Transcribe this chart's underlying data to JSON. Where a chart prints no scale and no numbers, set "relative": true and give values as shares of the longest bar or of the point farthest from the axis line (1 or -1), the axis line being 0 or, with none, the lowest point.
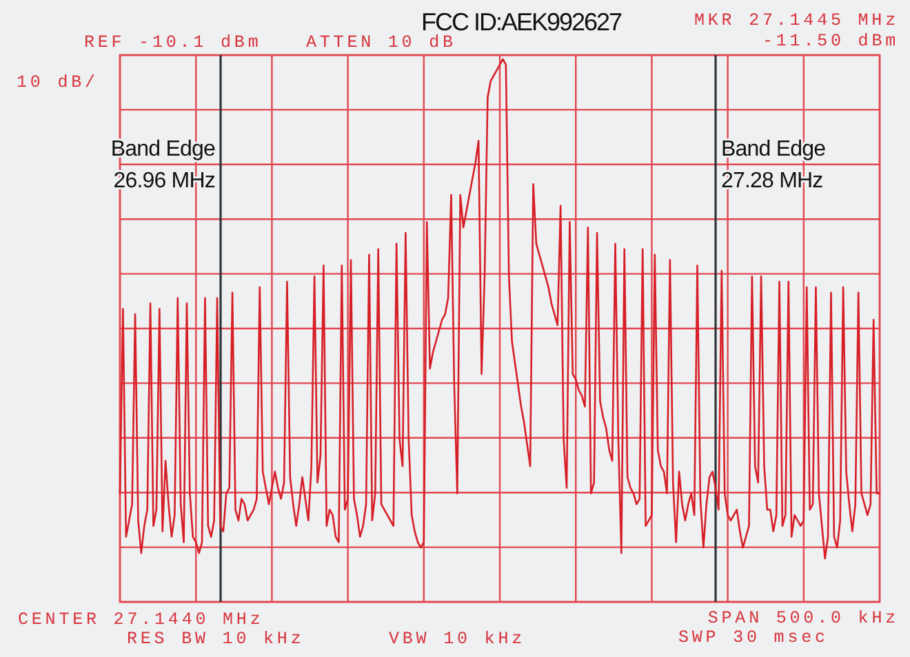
{
  "chart_data": {
    "type": "line",
    "title": "FCC ID:AEK992627",
    "annotations": [
      "REF -10.1 dBm",
      "10 dB/",
      "ATTEN 10 dB",
      "MKR 27.1445 MHz",
      "-11.50 dBm",
      "Band Edge\n26.96 MHz",
      "Band Edge\n27.28 MHz",
      "CENTER 27.1440 MHz",
      "RES BW 10 kHz",
      "VBW 10 kHz",
      "SPAN 500.0 kHz",
      "SWP 30 msec"
    ],
    "relative": true,
    "grid": true,
    "categories": [
      null,
      null,
      null,
      null,
      null,
      null,
      null,
      null,
      null,
      null,
      null,
      null,
      null,
      null,
      null,
      null,
      null,
      null,
      null,
      null,
      null,
      null,
      null,
      null,
      null,
      null,
      null,
      null,
      null,
      null,
      null,
      null,
      null,
      null,
      null,
      null,
      null,
      null,
      null,
      null,
      null,
      null,
      null,
      null,
      null,
      null,
      null,
      null,
      null,
      null,
      null,
      null,
      null,
      null,
      null,
      null,
      null,
      null,
      null,
      null,
      null,
      null,
      null,
      null,
      null,
      null,
      null,
      null,
      null,
      null,
      null,
      null,
      null,
      null,
      null,
      null,
      null,
      null,
      null,
      null,
      null,
      null,
      null,
      null,
      null,
      null,
      null,
      null,
      null,
      null,
      null,
      null,
      null,
      null,
      null,
      null,
      null,
      null,
      null,
      null,
      null,
      null,
      null,
      null,
      null,
      null,
      null,
      null,
      null,
      null,
      null,
      null,
      null,
      null,
      null,
      null,
      null,
      null,
      null,
      null,
      null,
      null,
      null,
      null,
      null,
      null,
      null,
      null,
      null,
      null,
      null,
      null,
      null,
      null,
      null,
      null,
      null,
      null,
      null,
      null,
      null,
      null,
      null,
      null,
      null,
      null,
      null,
      null,
      null,
      null,
      null,
      null,
      null,
      null,
      null,
      null,
      null,
      null,
      null,
      null,
      null,
      null,
      null,
      null,
      null,
      null,
      null,
      null,
      null,
      null,
      null,
      null,
      null,
      null,
      null,
      null,
      null,
      null,
      null,
      null,
      null,
      null,
      null,
      null,
      null,
      null,
      null,
      null,
      null,
      null,
      null,
      null,
      null,
      null,
      null,
      null,
      null,
      null,
      null,
      null,
      null,
      null,
      null,
      null,
      null,
      null,
      null,
      null,
      null,
      null,
      null,
      null,
      null,
      null,
      null,
      null,
      null,
      null,
      null,
      null,
      null,
      null,
      null,
      null,
      null,
      null,
      null,
      null,
      null,
      null,
      null,
      null,
      null,
      null,
      null,
      null,
      null,
      null,
      null,
      null,
      null,
      null,
      null,
      null,
      null,
      null,
      null,
      null,
      null,
      null,
      null
    ],
    "series": [
      {
        "color": "#d71f27",
        "values": [
          0.2,
          0.54,
          0.12,
          0.15,
          0.18,
          0.53,
          0.15,
          0.09,
          0.14,
          0.17,
          0.55,
          0.14,
          0.17,
          0.54,
          0.13,
          0.26,
          0.18,
          0.12,
          0.16,
          0.56,
          0.18,
          0.11,
          0.55,
          0.2,
          0.12,
          0.11,
          0.09,
          0.11,
          0.56,
          0.14,
          0.12,
          0.15,
          0.56,
          0.14,
          0.13,
          0.2,
          0.21,
          0.57,
          0.17,
          0.15,
          0.19,
          0.18,
          0.15,
          0.16,
          0.17,
          0.19,
          0.58,
          0.24,
          0.21,
          0.18,
          0.21,
          0.24,
          0.21,
          0.19,
          0.22,
          0.59,
          0.23,
          0.18,
          0.14,
          0.18,
          0.23,
          0.19,
          0.15,
          0.25,
          0.6,
          0.22,
          0.27,
          0.62,
          0.14,
          0.17,
          0.16,
          0.12,
          0.11,
          0.62,
          0.17,
          0.19,
          0.63,
          0.19,
          0.16,
          0.12,
          0.14,
          0.18,
          0.64,
          0.15,
          0.2,
          0.65,
          0.18,
          0.17,
          0.16,
          0.15,
          0.14,
          0.66,
          0.3,
          0.25,
          0.68,
          0.3,
          0.16,
          0.13,
          0.11,
          0.1,
          0.11,
          0.7,
          0.43,
          0.46,
          0.48,
          0.5,
          0.52,
          0.53,
          0.56,
          0.75,
          0.4,
          0.2,
          0.75,
          0.69,
          0.72,
          0.75,
          0.78,
          0.81,
          0.85,
          0.42,
          0.6,
          0.93,
          0.96,
          0.97,
          0.98,
          0.99,
          1,
          0.99,
          0.6,
          0.48,
          0.44,
          0.4,
          0.36,
          0.33,
          0.29,
          0.25,
          0.77,
          0.66,
          0.64,
          0.62,
          0.6,
          0.58,
          0.55,
          0.53,
          0.51,
          0.73,
          0.3,
          0.21,
          0.7,
          0.42,
          0.41,
          0.39,
          0.38,
          0.36,
          0.69,
          0.2,
          0.22,
          0.68,
          0.37,
          0.34,
          0.32,
          0.28,
          0.26,
          0.66,
          0.3,
          0.09,
          0.65,
          0.23,
          0.21,
          0.2,
          0.18,
          0.19,
          0.65,
          0.14,
          0.15,
          0.16,
          0.64,
          0.28,
          0.25,
          0.24,
          0.2,
          0.63,
          0.22,
          0.11,
          0.24,
          0.18,
          0.15,
          0.18,
          0.2,
          0.16,
          0.62,
          0.19,
          0.1,
          0.18,
          0.23,
          0.24,
          0.21,
          0.17,
          0.61,
          0.2,
          0.16,
          0.15,
          0.16,
          0.17,
          0.13,
          0.1,
          0.12,
          0.14,
          0.6,
          0.25,
          0.22,
          0.6,
          0.25,
          0.17,
          0.17,
          0.13,
          0.16,
          0.59,
          0.14,
          0.16,
          0.59,
          0.12,
          0.16,
          0.15,
          0.14,
          0.15,
          0.58,
          0.17,
          0.18,
          0.58,
          0.2,
          0.14,
          0.08,
          0.12,
          0.57,
          0.12,
          0.1,
          0.15,
          0.58,
          0.24,
          0.18,
          0.13,
          0.18,
          0.57,
          0.2,
          0.18,
          0.16,
          0.18,
          0.52,
          0.2,
          0.2
        ]
      }
    ]
  }
}
